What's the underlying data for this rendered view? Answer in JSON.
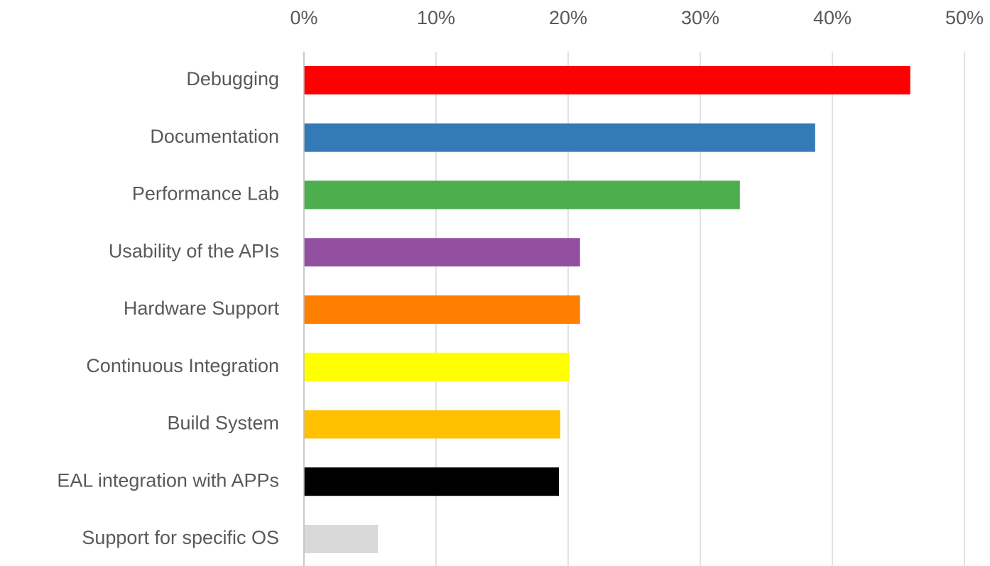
{
  "chart_data": {
    "type": "barh",
    "categories": [
      "Debugging",
      "Documentation",
      "Performance Lab",
      "Usability of the APIs",
      "Hardware Support",
      "Continuous Integration",
      "Build System",
      "EAL integration with APPs",
      "Support for specific OS"
    ],
    "values": [
      45.9,
      38.7,
      33.0,
      20.9,
      20.9,
      20.1,
      19.4,
      19.3,
      5.6
    ],
    "colors": [
      "#ff0000",
      "#337ab7",
      "#4cae4c",
      "#9450a0",
      "#ff7f00",
      "#ffff00",
      "#ffc000",
      "#000000",
      "#d9d9d9"
    ],
    "xlim": [
      0,
      50
    ],
    "xticks": [
      {
        "value": 0,
        "label": "0%"
      },
      {
        "value": 10,
        "label": "10%"
      },
      {
        "value": 20,
        "label": "20%"
      },
      {
        "value": 30,
        "label": "30%"
      },
      {
        "value": 40,
        "label": "40%"
      },
      {
        "value": 50,
        "label": "50%"
      }
    ],
    "grid": true
  }
}
